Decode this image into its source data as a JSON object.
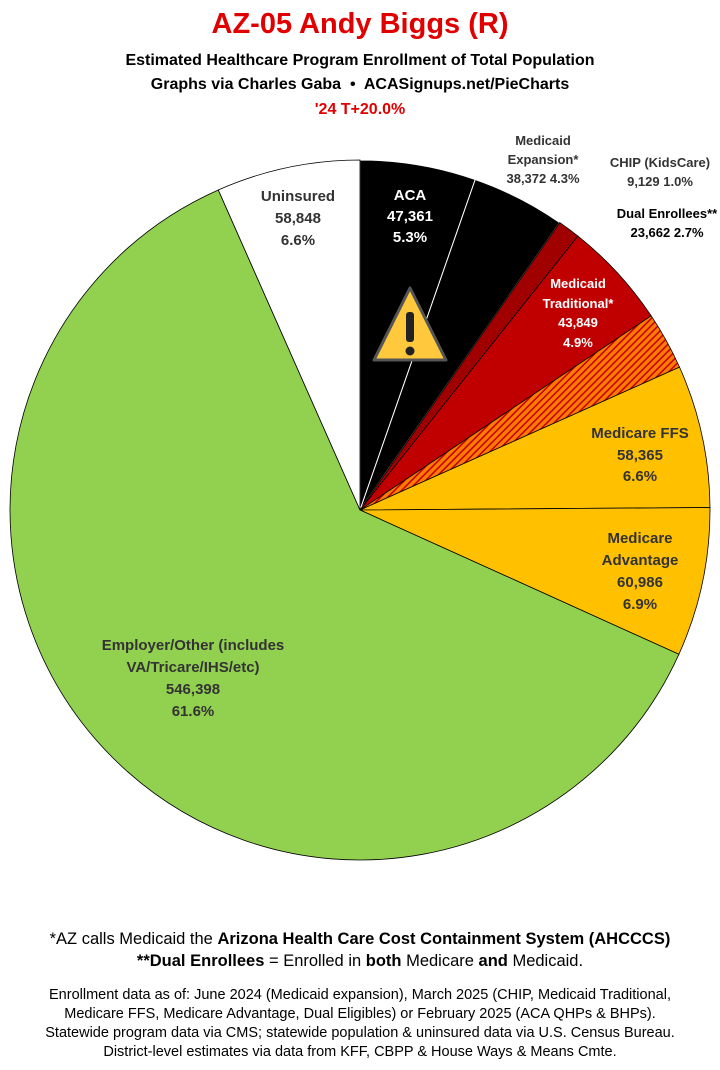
{
  "chart_data": {
    "type": "pie",
    "title": "AZ-05 Andy Biggs (R)",
    "subtitle": [
      "Estimated Healthcare Program Enrollment of Total Population",
      "Graphs via Charles Gaba  •  ACASignups.net/PieCharts",
      "'24 T+20.0%"
    ],
    "categories": [
      "ACA",
      "Medicaid Expansion*",
      "CHIP (KidsCare)",
      "Medicaid Traditional*",
      "Dual Enrollees**",
      "Medicare FFS",
      "Medicare Advantage",
      "Employer/Other (includes VA/Tricare/IHS/etc)",
      "Uninsured"
    ],
    "values": [
      47361,
      38372,
      9129,
      43849,
      23662,
      58365,
      60986,
      546398,
      58848
    ],
    "value_labels": [
      "47,361",
      "38,372",
      "9,129",
      "43,849",
      "23,662",
      "58,365",
      "60,986",
      "546,398",
      "58,848"
    ],
    "percent_labels": [
      "5.3%",
      "4.3%",
      "1.0%",
      "4.9%",
      "2.7%",
      "6.6%",
      "6.9%",
      "61.6%",
      "6.6%"
    ],
    "colors": [
      "#000000",
      "#000000",
      "#a00000",
      "#c00000",
      "#c00000",
      "#ffc000",
      "#ffc000",
      "#92d050",
      "#ffffff"
    ],
    "hatched": [
      false,
      false,
      false,
      false,
      true,
      false,
      false,
      false,
      false
    ],
    "notes": [
      [
        "*AZ calls Medicaid the ",
        "Arizona Health Care Cost Containment System (AHCCCS)"
      ],
      [
        "**Dual Enrollees",
        " = Enrolled in ",
        "both",
        " Medicare ",
        "and",
        " Medicaid."
      ]
    ],
    "sources": [
      "Enrollment data as of: June 2024 (Medicaid expansion), March 2025 (CHIP, Medicaid Traditional,",
      "Medicare FFS, Medicare Advantage, Dual Eligibles) or February 2025 (ACA QHPs & BHPs).",
      "Statewide program data via CMS; statewide population & uninsured data via U.S. Census Bureau.",
      "District-level estimates via data from KFF, CBPP & House Ways & Means Cmte."
    ]
  }
}
